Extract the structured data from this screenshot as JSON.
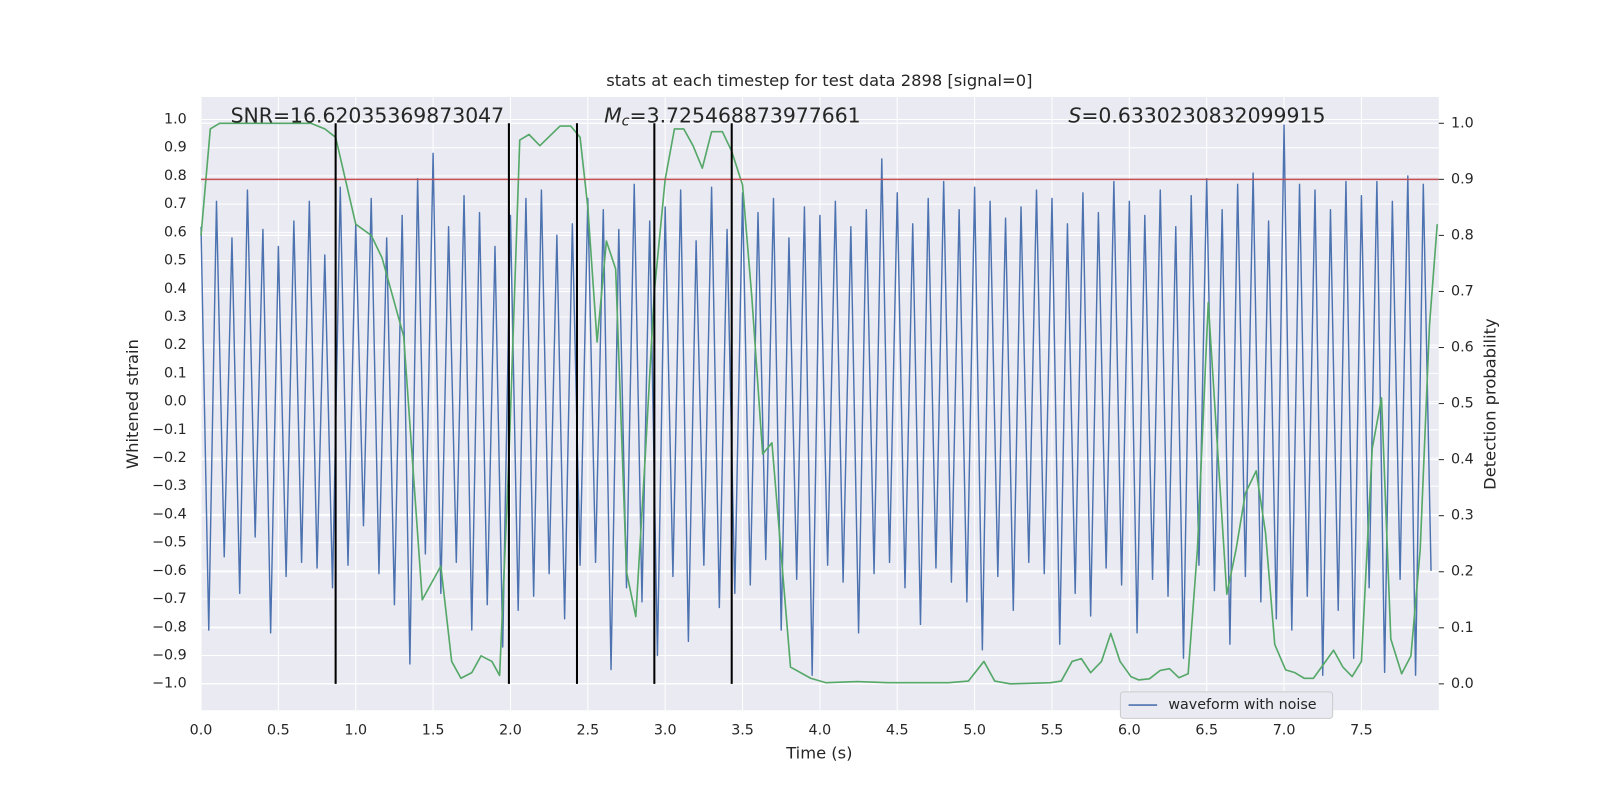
{
  "chart_data": {
    "type": "line",
    "title": "stats at each timestep for test data 2898 [signal=0]",
    "x_label": "Time (s)",
    "y_label": "Whitened strain",
    "y2_label": "Detection probability",
    "annotations": [
      {
        "text": "SNR=16.62035369873047"
      },
      {
        "symbol": "M",
        "subscript": "c",
        "text": "=3.725468873977661"
      },
      {
        "symbol": "S",
        "text": "=0.6330230832099915"
      }
    ],
    "xlim": [
      0,
      8.0
    ],
    "ylim": [
      -1.094,
      1.08
    ],
    "y2lim": [
      -0.047,
      1.047
    ],
    "xticks": [
      {
        "value": 0,
        "label": "0.0"
      },
      {
        "value": 0.5,
        "label": "0.5"
      },
      {
        "value": 1,
        "label": "1.0"
      },
      {
        "value": 1.5,
        "label": "1.5"
      },
      {
        "value": 2,
        "label": "2.0"
      },
      {
        "value": 2.5,
        "label": "2.5"
      },
      {
        "value": 3,
        "label": "3.0"
      },
      {
        "value": 3.5,
        "label": "3.5"
      },
      {
        "value": 4,
        "label": "4.0"
      },
      {
        "value": 4.5,
        "label": "4.5"
      },
      {
        "value": 5,
        "label": "5.0"
      },
      {
        "value": 5.5,
        "label": "5.5"
      },
      {
        "value": 6,
        "label": "6.0"
      },
      {
        "value": 6.5,
        "label": "6.5"
      },
      {
        "value": 7,
        "label": "7.0"
      },
      {
        "value": 7.5,
        "label": "7.5"
      }
    ],
    "yticks": [
      {
        "value": -1.0,
        "label": "−1.0"
      },
      {
        "value": -0.9,
        "label": "−0.9"
      },
      {
        "value": -0.8,
        "label": "−0.8"
      },
      {
        "value": -0.7,
        "label": "−0.7"
      },
      {
        "value": -0.6,
        "label": "−0.6"
      },
      {
        "value": -0.5,
        "label": "−0.5"
      },
      {
        "value": -0.4,
        "label": "−0.4"
      },
      {
        "value": -0.3,
        "label": "−0.3"
      },
      {
        "value": -0.2,
        "label": "−0.2"
      },
      {
        "value": -0.1,
        "label": "−0.1"
      },
      {
        "value": 0,
        "label": "0.0"
      },
      {
        "value": 0.1,
        "label": "0.1"
      },
      {
        "value": 0.2,
        "label": "0.2"
      },
      {
        "value": 0.3,
        "label": "0.3"
      },
      {
        "value": 0.4,
        "label": "0.4"
      },
      {
        "value": 0.5,
        "label": "0.5"
      },
      {
        "value": 0.6,
        "label": "0.6"
      },
      {
        "value": 0.7,
        "label": "0.7"
      },
      {
        "value": 0.8,
        "label": "0.8"
      },
      {
        "value": 0.9,
        "label": "0.9"
      },
      {
        "value": 1.0,
        "label": "1.0"
      }
    ],
    "y2ticks": [
      {
        "value": 0,
        "label": "0.0"
      },
      {
        "value": 0.1,
        "label": "0.1"
      },
      {
        "value": 0.2,
        "label": "0.2"
      },
      {
        "value": 0.3,
        "label": "0.3"
      },
      {
        "value": 0.4,
        "label": "0.4"
      },
      {
        "value": 0.5,
        "label": "0.5"
      },
      {
        "value": 0.6,
        "label": "0.6"
      },
      {
        "value": 0.7,
        "label": "0.7"
      },
      {
        "value": 0.8,
        "label": "0.8"
      },
      {
        "value": 0.9,
        "label": "0.9"
      },
      {
        "value": 1.0,
        "label": "1.0"
      }
    ],
    "grid": true,
    "legend": "lower right",
    "series": [
      {
        "name": "waveform with noise",
        "color": "#4c72b0",
        "axis": "y",
        "x": [
          0,
          0.05,
          0.1,
          0.15,
          0.2,
          0.25,
          0.3,
          0.35,
          0.4,
          0.45,
          0.5,
          0.55,
          0.6,
          0.65,
          0.7,
          0.75,
          0.8,
          0.85,
          0.9,
          0.95,
          1,
          1.05,
          1.1,
          1.15,
          1.2,
          1.25,
          1.3,
          1.35,
          1.4,
          1.45,
          1.5,
          1.55,
          1.6,
          1.65,
          1.7,
          1.75,
          1.8,
          1.85,
          1.9,
          1.95,
          2,
          2.05,
          2.1,
          2.15,
          2.2,
          2.25,
          2.3,
          2.35,
          2.4,
          2.45,
          2.5,
          2.55,
          2.6,
          2.65,
          2.7,
          2.75,
          2.8,
          2.85,
          2.9,
          2.95,
          3,
          3.05,
          3.1,
          3.15,
          3.2,
          3.25,
          3.3,
          3.35,
          3.4,
          3.45,
          3.5,
          3.55,
          3.6,
          3.65,
          3.7,
          3.75,
          3.8,
          3.85,
          3.9,
          3.95,
          4,
          4.05,
          4.1,
          4.15,
          4.2,
          4.25,
          4.3,
          4.35,
          4.4,
          4.45,
          4.5,
          4.55,
          4.6,
          4.65,
          4.7,
          4.75,
          4.8,
          4.85,
          4.9,
          4.95,
          5,
          5.05,
          5.1,
          5.15,
          5.2,
          5.25,
          5.3,
          5.35,
          5.4,
          5.45,
          5.5,
          5.55,
          5.6,
          5.65,
          5.7,
          5.75,
          5.8,
          5.85,
          5.9,
          5.95,
          6,
          6.05,
          6.1,
          6.15,
          6.2,
          6.25,
          6.3,
          6.35,
          6.4,
          6.45,
          6.5,
          6.55,
          6.6,
          6.65,
          6.7,
          6.75,
          6.8,
          6.85,
          6.9,
          6.95,
          7,
          7.05,
          7.1,
          7.15,
          7.2,
          7.25,
          7.3,
          7.35,
          7.4,
          7.45,
          7.5,
          7.55,
          7.6,
          7.65,
          7.7,
          7.75,
          7.8,
          7.85,
          7.9,
          7.95
        ],
        "values": [
          0.62,
          -0.81,
          0.71,
          -0.55,
          0.58,
          -0.68,
          0.75,
          -0.48,
          0.61,
          -0.82,
          0.55,
          -0.62,
          0.64,
          -0.57,
          0.71,
          -0.59,
          0.52,
          -0.66,
          0.76,
          -0.58,
          0.63,
          -0.44,
          0.72,
          -0.61,
          0.58,
          -0.72,
          0.66,
          -0.93,
          0.79,
          -0.54,
          0.88,
          -0.68,
          0.62,
          -0.57,
          0.73,
          -0.81,
          0.67,
          -0.72,
          0.55,
          -0.87,
          0.66,
          -0.74,
          0.72,
          -0.69,
          0.75,
          -0.61,
          0.59,
          -0.77,
          0.63,
          -0.58,
          0.72,
          -0.57,
          0.68,
          -0.95,
          0.61,
          -0.66,
          0.77,
          -0.71,
          0.64,
          -0.9,
          0.69,
          -0.62,
          0.75,
          -0.85,
          0.57,
          -0.58,
          0.76,
          -0.73,
          0.61,
          -0.68,
          0.74,
          -0.65,
          0.67,
          -0.56,
          0.72,
          -0.81,
          0.58,
          -0.63,
          0.69,
          -0.97,
          0.66,
          -0.58,
          0.71,
          -0.64,
          0.62,
          -0.82,
          0.68,
          -0.61,
          0.86,
          -0.57,
          0.74,
          -0.66,
          0.63,
          -0.79,
          0.72,
          -0.59,
          0.78,
          -0.64,
          0.68,
          -0.71,
          0.76,
          -0.88,
          0.71,
          -0.62,
          0.65,
          -0.74,
          0.69,
          -0.57,
          0.75,
          -0.61,
          0.72,
          -0.86,
          0.63,
          -0.68,
          0.74,
          -0.76,
          0.67,
          -0.59,
          0.78,
          -0.65,
          0.71,
          -0.82,
          0.66,
          -0.63,
          0.75,
          -0.69,
          0.62,
          -0.91,
          0.73,
          -0.58,
          0.79,
          -0.67,
          0.68,
          -0.86,
          0.77,
          -0.62,
          0.81,
          -0.71,
          0.64,
          -0.77,
          0.98,
          -0.81,
          0.77,
          -0.69,
          0.75,
          -0.97,
          0.68,
          -0.74,
          0.78,
          -0.91,
          0.73,
          -0.66,
          0.78,
          -0.96,
          0.71,
          -0.63,
          0.8,
          -0.97,
          0.77,
          -0.6
        ]
      },
      {
        "color": "#55a868",
        "axis": "y2",
        "x": [
          0,
          0.06,
          0.12,
          0.4,
          0.71,
          0.8,
          0.87,
          1.0,
          1.1,
          1.17,
          1.31,
          1.43,
          1.55,
          1.62,
          1.68,
          1.75,
          1.81,
          1.88,
          1.93,
          1.99,
          2.06,
          2.12,
          2.19,
          2.32,
          2.39,
          2.45,
          2.5,
          2.56,
          2.62,
          2.68,
          2.75,
          2.81,
          2.87,
          2.93,
          3.0,
          3.06,
          3.12,
          3.18,
          3.24,
          3.3,
          3.37,
          3.43,
          3.5,
          3.56,
          3.63,
          3.69,
          3.75,
          3.81,
          3.94,
          4.04,
          4.24,
          4.44,
          4.83,
          4.96,
          5.06,
          5.13,
          5.23,
          5.49,
          5.56,
          5.63,
          5.69,
          5.75,
          5.82,
          5.88,
          5.94,
          6.01,
          6.06,
          6.13,
          6.2,
          6.26,
          6.32,
          6.38,
          6.44,
          6.51,
          6.57,
          6.63,
          6.69,
          6.75,
          6.82,
          6.88,
          6.94,
          7.01,
          7.07,
          7.13,
          7.19,
          7.25,
          7.32,
          7.38,
          7.44,
          7.5,
          7.57,
          7.63,
          7.69,
          7.76,
          7.82,
          7.88,
          7.94,
          7.99
        ],
        "values": [
          0.8,
          0.99,
          1.0,
          1.0,
          1.0,
          0.99,
          0.975,
          0.82,
          0.8,
          0.76,
          0.62,
          0.15,
          0.21,
          0.04,
          0.01,
          0.02,
          0.05,
          0.04,
          0.015,
          0.4,
          0.97,
          0.98,
          0.96,
          0.995,
          0.995,
          0.975,
          0.85,
          0.61,
          0.79,
          0.74,
          0.2,
          0.12,
          0.4,
          0.7,
          0.9,
          0.99,
          0.99,
          0.96,
          0.92,
          0.985,
          0.985,
          0.95,
          0.89,
          0.69,
          0.41,
          0.43,
          0.23,
          0.03,
          0.01,
          0.002,
          0.004,
          0.002,
          0.002,
          0.005,
          0.04,
          0.005,
          0.0,
          0.002,
          0.005,
          0.04,
          0.045,
          0.02,
          0.04,
          0.09,
          0.04,
          0.013,
          0.007,
          0.009,
          0.024,
          0.027,
          0.011,
          0.018,
          0.24,
          0.68,
          0.42,
          0.16,
          0.24,
          0.34,
          0.38,
          0.27,
          0.07,
          0.025,
          0.02,
          0.01,
          0.01,
          0.033,
          0.06,
          0.03,
          0.013,
          0.04,
          0.42,
          0.51,
          0.08,
          0.018,
          0.05,
          0.24,
          0.64,
          0.82
        ]
      }
    ],
    "hlines": [
      {
        "value": 0.9,
        "axis": "y2",
        "color": "#c44e52"
      }
    ],
    "vlines": {
      "values": [
        0.87,
        1.99,
        2.43,
        2.93,
        3.43
      ],
      "color": "#000000"
    }
  }
}
